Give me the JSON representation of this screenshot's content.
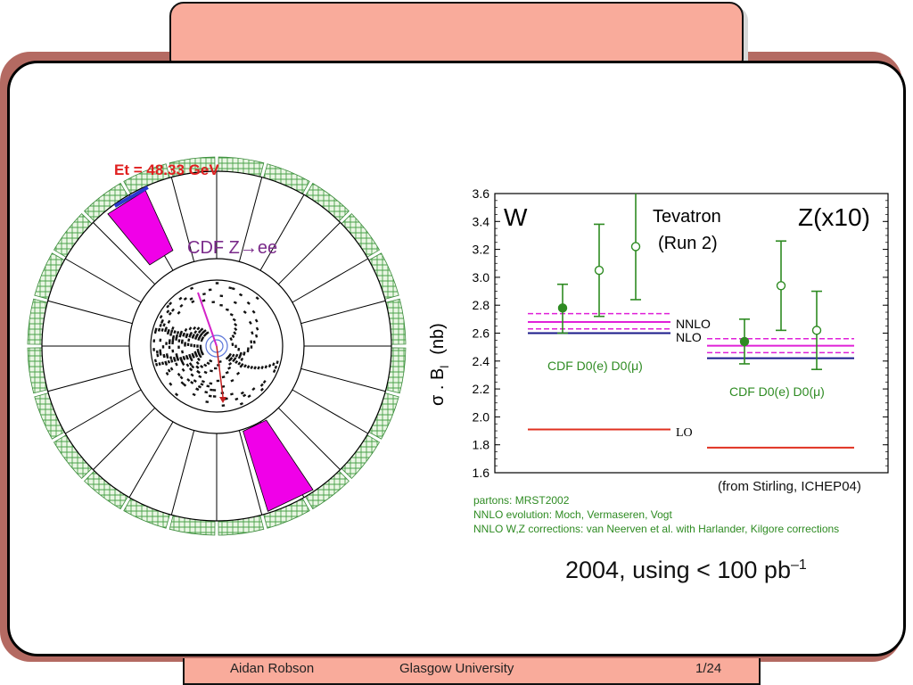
{
  "event_display": {
    "energy_label": "Et =  48.33 GeV",
    "caption": "CDF Z→ee"
  },
  "chart_data": {
    "type": "scatter",
    "ylabel": "σ . B",
    "ylabel_subscript": "l",
    "ylabel_unit": "(nb)",
    "ylim": [
      1.6,
      3.6
    ],
    "yticks": [
      "3.6",
      "3.4",
      "3.2",
      "3.0",
      "2.8",
      "2.6",
      "2.4",
      "2.2",
      "2.0",
      "1.8",
      "1.6"
    ],
    "panels": [
      {
        "label": "W",
        "theory": {
          "NNLO": 2.68,
          "NNLO_band": [
            2.63,
            2.74
          ],
          "NLO": 2.6,
          "LO": 1.91
        },
        "points": [
          {
            "experiment": "CDF",
            "value": 2.78,
            "err_low": 0.18,
            "err_high": 0.17,
            "marker": "filled"
          },
          {
            "experiment": "D0(e)",
            "value": 3.05,
            "err_low": 0.33,
            "err_high": 0.33,
            "marker": "open"
          },
          {
            "experiment": "D0(μ)",
            "value": 3.22,
            "err_low": 0.38,
            "err_high": 0.38,
            "marker": "open"
          }
        ],
        "experiment_label": "CDF D0(e) D0(μ)"
      },
      {
        "label": "Z(x10)",
        "theory": {
          "NNLO": 2.51,
          "NNLO_band": [
            2.46,
            2.56
          ],
          "NLO": 2.42,
          "LO": 1.78
        },
        "points": [
          {
            "experiment": "CDF",
            "value": 2.54,
            "err_low": 0.16,
            "err_high": 0.16,
            "marker": "filled"
          },
          {
            "experiment": "D0(e)",
            "value": 2.94,
            "err_low": 0.32,
            "err_high": 0.32,
            "marker": "open"
          },
          {
            "experiment": "D0(μ)",
            "value": 2.62,
            "err_low": 0.28,
            "err_high": 0.28,
            "marker": "open"
          }
        ],
        "experiment_label": "CDF D0(e) D0(μ)"
      }
    ],
    "annotations": {
      "header_line1": "Tevatron",
      "header_line2": "(Run 2)",
      "nnlo": "NNLO",
      "nlo": "NLO",
      "lo": "LO"
    },
    "colors": {
      "data": "#2e8b22",
      "nnlo": "#e020d8",
      "nlo": "#1a1a8a",
      "lo": "#e03020"
    }
  },
  "source_note": "(from Stirling, ICHEP04)",
  "footnotes": [
    "partons: MRST2002",
    "NNLO evolution: Moch, Vermaseren, Vogt",
    "NNLO W,Z corrections: van Neerven et al. with Harlander, Kilgore corrections"
  ],
  "summary": {
    "text": "2004, using < 100 pb",
    "superscript": "–1"
  },
  "footer": {
    "author": "Aidan Robson",
    "institution": "Glasgow University",
    "page": "1/24"
  }
}
